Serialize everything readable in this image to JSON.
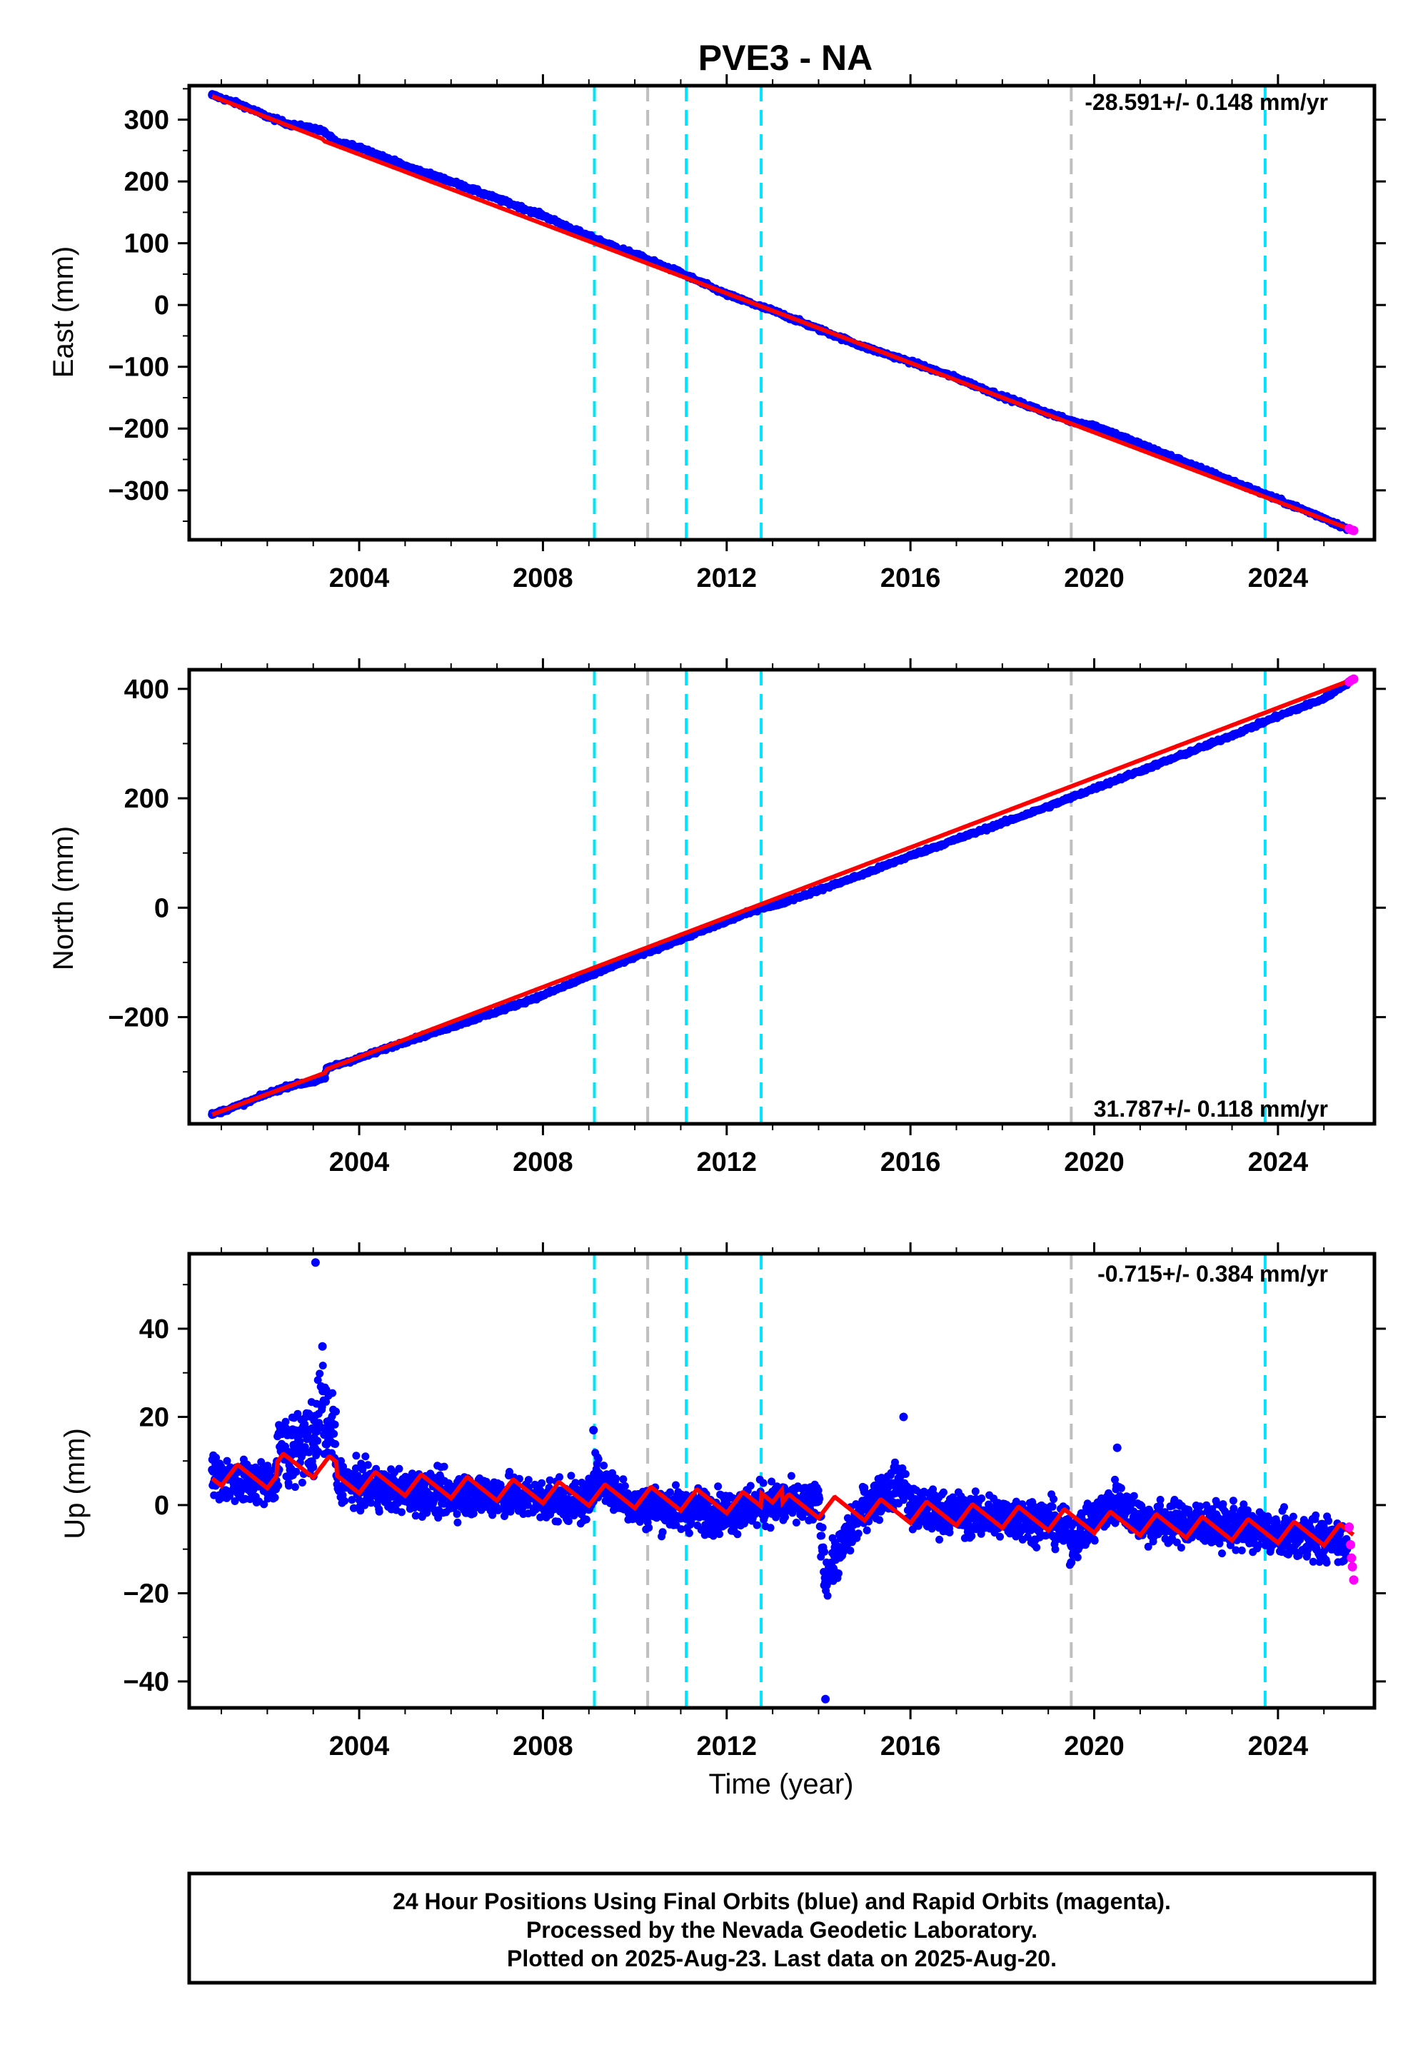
{
  "title": "PVE3 - NA",
  "colors": {
    "final_orbits": "#0000ff",
    "rapid_orbits": "#ff00ff",
    "model": "#ff0000",
    "cyan_lines": "#00e5ff",
    "gray_lines": "#bfbfbf"
  },
  "footer": {
    "line1": "24 Hour Positions Using Final Orbits (blue) and Rapid Orbits (magenta).",
    "line2": "Processed by the Nevada Geodetic Laboratory.",
    "line3": "Plotted on 2025-Aug-23. Last data on 2025-Aug-20."
  },
  "chart_data": [
    {
      "type": "scatter",
      "panel": "east",
      "ylabel": "East (mm)",
      "xlabel": "",
      "rate_label": "-28.591+/- 0.148 mm/yr",
      "rate_position": "top-right",
      "xlim": [
        2000.3,
        2026.1
      ],
      "ylim": [
        -380,
        355
      ],
      "yticks": [
        300,
        200,
        100,
        0,
        -100,
        -200,
        -300
      ],
      "ytick_labels": [
        "300",
        "200",
        "100",
        "0",
        "−100",
        "−200",
        "−300"
      ],
      "xticks": [
        2004,
        2008,
        2012,
        2016,
        2020,
        2024
      ],
      "xtick_labels": [
        "2004",
        "2008",
        "2012",
        "2016",
        "2020",
        "2024"
      ],
      "vlines": {
        "cyan": [
          2009.12,
          2011.12,
          2012.75,
          2023.72
        ],
        "gray": [
          2010.28,
          2019.5
        ]
      },
      "series": [
        {
          "role": "final_orbits",
          "x": [
            2000.8,
            2001.5,
            2002.0,
            2002.5,
            2003.0,
            2003.25,
            2003.5,
            2004.0,
            2005.0,
            2006.0,
            2007.0,
            2008.0,
            2009.0,
            2010.0,
            2011.0,
            2012.0,
            2012.75,
            2013.0,
            2014.0,
            2015.0,
            2016.0,
            2017.0,
            2018.0,
            2019.0,
            2019.5,
            2020.0,
            2021.0,
            2022.0,
            2023.0,
            2024.0,
            2025.0,
            2025.5
          ],
          "y": [
            340,
            322,
            305,
            292,
            286,
            280,
            263,
            256,
            225,
            200,
            172,
            145,
            111,
            82,
            52,
            17,
            -3,
            -9,
            -39,
            -68,
            -92,
            -118,
            -148,
            -175,
            -188,
            -195,
            -225,
            -255,
            -285,
            -315,
            -345,
            -362
          ]
        },
        {
          "role": "rapid_orbits",
          "x": [
            2025.55,
            2025.6,
            2025.65
          ],
          "y": [
            -362,
            -364,
            -365
          ]
        },
        {
          "role": "model",
          "x": [
            2000.8,
            2003.2,
            2003.25,
            2025.65
          ],
          "y": [
            338,
            269,
            265,
            -365
          ]
        }
      ]
    },
    {
      "type": "scatter",
      "panel": "north",
      "ylabel": "North (mm)",
      "xlabel": "",
      "rate_label": "31.787+/- 0.118 mm/yr",
      "rate_position": "bottom-right",
      "xlim": [
        2000.3,
        2026.1
      ],
      "ylim": [
        -395,
        435
      ],
      "yticks": [
        400,
        200,
        0,
        -200
      ],
      "ytick_labels": [
        "400",
        "200",
        "0",
        "−200"
      ],
      "xticks": [
        2004,
        2008,
        2012,
        2016,
        2020,
        2024
      ],
      "xtick_labels": [
        "2004",
        "2008",
        "2012",
        "2016",
        "2020",
        "2024"
      ],
      "vlines": {
        "cyan": [
          2009.12,
          2011.12,
          2012.75,
          2023.72
        ],
        "gray": [
          2010.28,
          2019.5
        ]
      },
      "series": [
        {
          "role": "final_orbits",
          "x": [
            2000.8,
            2001.5,
            2002.0,
            2002.5,
            2003.0,
            2003.25,
            2003.3,
            2004.0,
            2005.0,
            2006.0,
            2007.0,
            2008.0,
            2009.0,
            2010.0,
            2011.0,
            2012.0,
            2012.75,
            2013.0,
            2014.0,
            2015.0,
            2016.0,
            2017.0,
            2018.0,
            2019.0,
            2020.0,
            2021.0,
            2022.0,
            2023.0,
            2024.0,
            2025.0,
            2025.5
          ],
          "y": [
            -378,
            -358,
            -340,
            -325,
            -318,
            -312,
            -293,
            -275,
            -245,
            -218,
            -190,
            -160,
            -125,
            -90,
            -58,
            -25,
            0,
            3,
            32,
            62,
            95,
            125,
            155,
            185,
            218,
            250,
            282,
            315,
            350,
            382,
            410
          ]
        },
        {
          "role": "rapid_orbits",
          "x": [
            2025.55,
            2025.6,
            2025.65
          ],
          "y": [
            413,
            416,
            418
          ]
        },
        {
          "role": "model",
          "x": [
            2000.8,
            2003.25,
            2003.3,
            2025.65
          ],
          "y": [
            -378,
            -302,
            -295,
            418
          ]
        }
      ]
    },
    {
      "type": "scatter",
      "panel": "up",
      "ylabel": "Up (mm)",
      "xlabel": "Time (year)",
      "rate_label": "-0.715+/- 0.384 mm/yr",
      "rate_position": "top-right",
      "xlim": [
        2000.3,
        2026.1
      ],
      "ylim": [
        -46,
        57
      ],
      "yticks": [
        40,
        20,
        0,
        -20,
        -40
      ],
      "ytick_labels": [
        "40",
        "20",
        "0",
        "−20",
        "−40"
      ],
      "xticks": [
        2004,
        2008,
        2012,
        2016,
        2020,
        2024
      ],
      "xtick_labels": [
        "2004",
        "2008",
        "2012",
        "2016",
        "2020",
        "2024"
      ],
      "vlines": {
        "cyan": [
          2009.12,
          2011.12,
          2012.75,
          2023.72
        ],
        "gray": [
          2010.28,
          2019.5
        ]
      },
      "series": [
        {
          "role": "final_orbits",
          "x": [
            2000.8,
            2001.0,
            2001.5,
            2002.0,
            2002.5,
            2002.8,
            2003.0,
            2003.2,
            2003.5,
            2004.0,
            2005.0,
            2006.0,
            2007.0,
            2008.0,
            2009.0,
            2009.1,
            2010.0,
            2011.0,
            2012.0,
            2012.75,
            2013.0,
            2014.0,
            2014.15,
            2015.0,
            2015.85,
            2016.0,
            2017.0,
            2018.0,
            2019.0,
            2019.5,
            2020.0,
            2020.5,
            2021.0,
            2022.0,
            2023.0,
            2023.7,
            2024.0,
            2025.0,
            2025.5
          ],
          "y": [
            8,
            6,
            4,
            5,
            8,
            12,
            14,
            36,
            10,
            4,
            2,
            1,
            2,
            0,
            -1,
            17,
            -2,
            -3,
            -4,
            2,
            3,
            2,
            -44,
            3,
            20,
            2,
            0,
            -1,
            -2,
            -13,
            -1,
            13,
            0,
            -1,
            -2,
            -4,
            -6,
            -8,
            -10
          ]
        },
        {
          "role": "outlier",
          "x": [
            2003.05
          ],
          "y": [
            55
          ]
        },
        {
          "role": "rapid_orbits",
          "x": [
            2025.55,
            2025.58,
            2025.6,
            2025.62,
            2025.65
          ],
          "y": [
            -5,
            -9,
            -12,
            -14,
            -17
          ]
        },
        {
          "role": "model",
          "x": [
            2000.8,
            2025.65
          ],
          "y": [
            6,
            -8
          ]
        }
      ]
    }
  ]
}
